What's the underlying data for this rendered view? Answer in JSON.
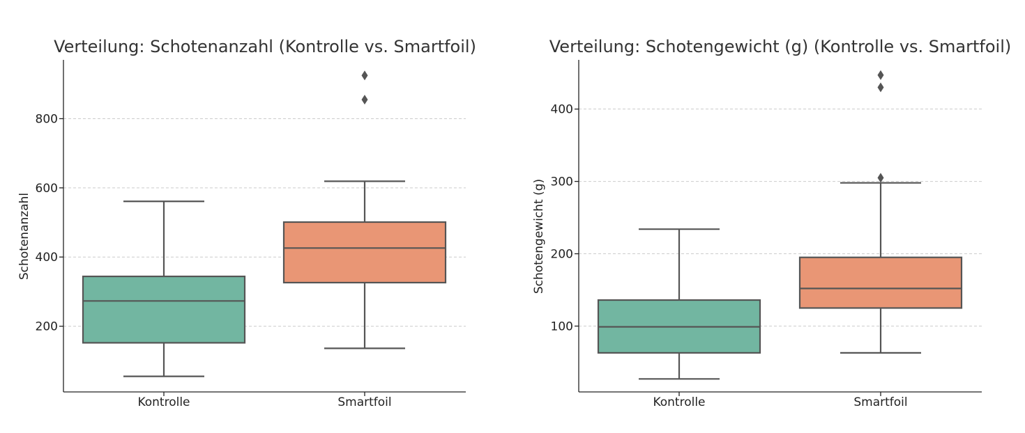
{
  "chart_data": [
    {
      "type": "box",
      "title": "Verteilung: Schotenanzahl (Kontrolle vs. Smartfoil)",
      "xlabel": "",
      "ylabel": "Schotenanzahl",
      "ylim": [
        10,
        970
      ],
      "yticks": [
        200,
        400,
        600,
        800
      ],
      "grid": true,
      "categories": [
        "Kontrolle",
        "Smartfoil"
      ],
      "colors": [
        "#72b6a1",
        "#e99675"
      ],
      "boxes": [
        {
          "name": "Kontrolle",
          "whisker_low": 55,
          "q1": 152,
          "median": 273,
          "q3": 344,
          "whisker_high": 561,
          "outliers": []
        },
        {
          "name": "Smartfoil",
          "whisker_low": 136,
          "q1": 326,
          "median": 426,
          "q3": 501,
          "whisker_high": 619,
          "outliers": [
            855,
            925
          ]
        }
      ]
    },
    {
      "type": "box",
      "title": "Verteilung: Schotengewicht (g) (Kontrolle vs. Smartfoil)",
      "xlabel": "",
      "ylabel": "Schotengewicht (g)",
      "ylim": [
        9,
        468
      ],
      "yticks": [
        100,
        200,
        300,
        400
      ],
      "grid": true,
      "categories": [
        "Kontrolle",
        "Smartfoil"
      ],
      "colors": [
        "#72b6a1",
        "#e99675"
      ],
      "boxes": [
        {
          "name": "Kontrolle",
          "whisker_low": 27,
          "q1": 63,
          "median": 99,
          "q3": 136,
          "whisker_high": 234,
          "outliers": []
        },
        {
          "name": "Smartfoil",
          "whisker_low": 63,
          "q1": 125,
          "median": 152,
          "q3": 195,
          "whisker_high": 298,
          "outliers": [
            305,
            430,
            447
          ]
        }
      ]
    }
  ]
}
